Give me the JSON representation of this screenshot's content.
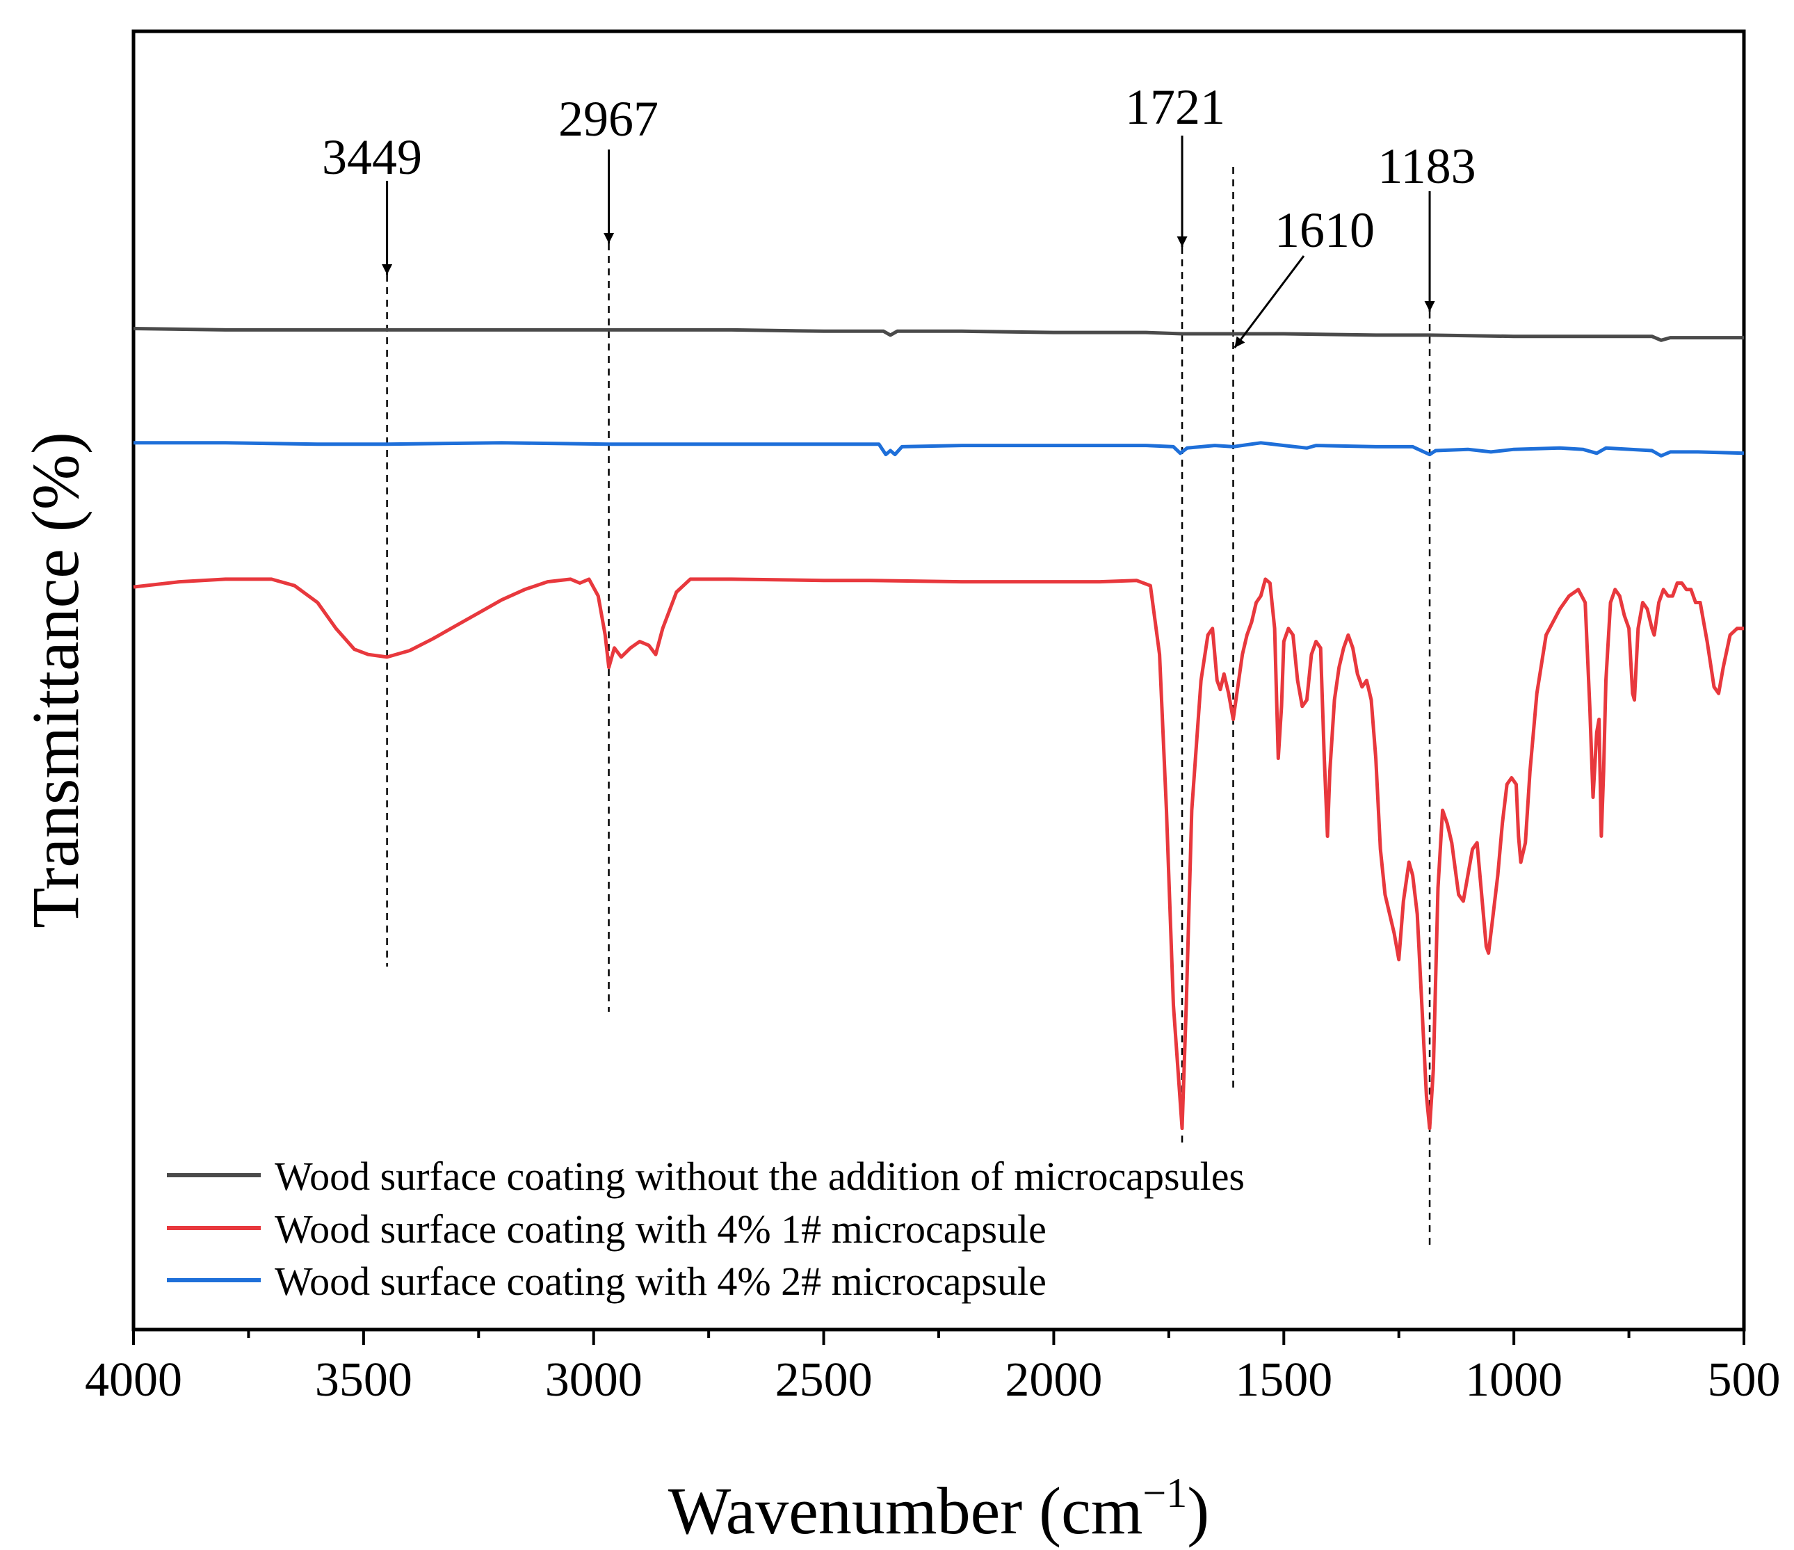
{
  "chart_data": {
    "type": "line",
    "title": "",
    "xlabel": "Wavenumber (cm",
    "xlabel_superscript": "−1",
    "xlabel_close": ")",
    "ylabel": "Transmittance (%)",
    "xlim": [
      4000,
      500
    ],
    "x_reversed": true,
    "ylim": [
      0,
      100
    ],
    "y_ticks_shown": false,
    "grid": false,
    "x_ticks": [
      4000,
      3500,
      3000,
      2500,
      2000,
      1500,
      1000,
      500
    ],
    "x_tick_labels": [
      "4000",
      "3500",
      "3000",
      "2500",
      "2000",
      "1500",
      "1000",
      "500"
    ],
    "legend_position": "bottom-left",
    "series": [
      {
        "name": "Wood surface coating without the addition of microcapsules",
        "color": "#4a4a4a",
        "points": [
          [
            4000,
            77.1
          ],
          [
            3800,
            77.0
          ],
          [
            3600,
            77.0
          ],
          [
            3449,
            77.0
          ],
          [
            3200,
            77.0
          ],
          [
            2967,
            77.0
          ],
          [
            2700,
            77.0
          ],
          [
            2500,
            76.9
          ],
          [
            2370,
            76.9
          ],
          [
            2355,
            76.6
          ],
          [
            2340,
            76.9
          ],
          [
            2200,
            76.9
          ],
          [
            2000,
            76.8
          ],
          [
            1800,
            76.8
          ],
          [
            1721,
            76.7
          ],
          [
            1610,
            76.7
          ],
          [
            1500,
            76.7
          ],
          [
            1300,
            76.6
          ],
          [
            1183,
            76.6
          ],
          [
            1000,
            76.5
          ],
          [
            800,
            76.5
          ],
          [
            700,
            76.5
          ],
          [
            680,
            76.2
          ],
          [
            660,
            76.4
          ],
          [
            500,
            76.4
          ]
        ]
      },
      {
        "name": "Wood surface coating with 4% 1# microcapsule",
        "color": "#e8383d",
        "points": [
          [
            4000,
            57.2
          ],
          [
            3900,
            57.6
          ],
          [
            3800,
            57.8
          ],
          [
            3700,
            57.8
          ],
          [
            3650,
            57.3
          ],
          [
            3600,
            56.0
          ],
          [
            3560,
            54.0
          ],
          [
            3520,
            52.4
          ],
          [
            3490,
            52.0
          ],
          [
            3449,
            51.8
          ],
          [
            3400,
            52.3
          ],
          [
            3350,
            53.2
          ],
          [
            3300,
            54.2
          ],
          [
            3250,
            55.2
          ],
          [
            3200,
            56.2
          ],
          [
            3150,
            57.0
          ],
          [
            3100,
            57.6
          ],
          [
            3050,
            57.8
          ],
          [
            3030,
            57.5
          ],
          [
            3010,
            57.8
          ],
          [
            2990,
            56.5
          ],
          [
            2975,
            53.5
          ],
          [
            2967,
            51.0
          ],
          [
            2955,
            52.5
          ],
          [
            2940,
            51.8
          ],
          [
            2920,
            52.5
          ],
          [
            2900,
            53.0
          ],
          [
            2880,
            52.7
          ],
          [
            2865,
            52.0
          ],
          [
            2850,
            54.0
          ],
          [
            2820,
            56.8
          ],
          [
            2790,
            57.8
          ],
          [
            2700,
            57.8
          ],
          [
            2500,
            57.7
          ],
          [
            2400,
            57.7
          ],
          [
            2200,
            57.6
          ],
          [
            2100,
            57.6
          ],
          [
            2000,
            57.6
          ],
          [
            1900,
            57.6
          ],
          [
            1820,
            57.7
          ],
          [
            1790,
            57.3
          ],
          [
            1770,
            52.0
          ],
          [
            1755,
            40.0
          ],
          [
            1740,
            25.0
          ],
          [
            1730,
            20.0
          ],
          [
            1721,
            15.5
          ],
          [
            1712,
            25.0
          ],
          [
            1700,
            40.0
          ],
          [
            1680,
            50.0
          ],
          [
            1665,
            53.5
          ],
          [
            1655,
            54.0
          ],
          [
            1645,
            50.0
          ],
          [
            1638,
            49.3
          ],
          [
            1630,
            50.5
          ],
          [
            1620,
            49.0
          ],
          [
            1610,
            47.0
          ],
          [
            1600,
            49.5
          ],
          [
            1590,
            52.0
          ],
          [
            1580,
            53.5
          ],
          [
            1570,
            54.5
          ],
          [
            1560,
            56.0
          ],
          [
            1550,
            56.5
          ],
          [
            1540,
            57.8
          ],
          [
            1530,
            57.5
          ],
          [
            1520,
            54.0
          ],
          [
            1512,
            44.0
          ],
          [
            1505,
            48.0
          ],
          [
            1500,
            53.0
          ],
          [
            1490,
            54.0
          ],
          [
            1480,
            53.5
          ],
          [
            1470,
            50.0
          ],
          [
            1460,
            48.0
          ],
          [
            1450,
            48.5
          ],
          [
            1440,
            52.0
          ],
          [
            1430,
            53.0
          ],
          [
            1420,
            52.5
          ],
          [
            1412,
            44.0
          ],
          [
            1405,
            38.0
          ],
          [
            1400,
            43.0
          ],
          [
            1390,
            48.5
          ],
          [
            1380,
            51.0
          ],
          [
            1370,
            52.5
          ],
          [
            1360,
            53.5
          ],
          [
            1350,
            52.5
          ],
          [
            1340,
            50.5
          ],
          [
            1330,
            49.5
          ],
          [
            1320,
            50.0
          ],
          [
            1310,
            48.5
          ],
          [
            1300,
            44.0
          ],
          [
            1290,
            37.0
          ],
          [
            1280,
            33.5
          ],
          [
            1270,
            32.0
          ],
          [
            1260,
            30.5
          ],
          [
            1250,
            28.5
          ],
          [
            1240,
            33.0
          ],
          [
            1228,
            36.0
          ],
          [
            1220,
            35.0
          ],
          [
            1210,
            32.0
          ],
          [
            1200,
            25.0
          ],
          [
            1190,
            18.0
          ],
          [
            1183,
            15.5
          ],
          [
            1175,
            20.0
          ],
          [
            1165,
            34.0
          ],
          [
            1155,
            40.0
          ],
          [
            1145,
            39.0
          ],
          [
            1135,
            37.5
          ],
          [
            1120,
            33.5
          ],
          [
            1110,
            33.0
          ],
          [
            1100,
            35.0
          ],
          [
            1090,
            37.0
          ],
          [
            1080,
            37.5
          ],
          [
            1070,
            33.5
          ],
          [
            1060,
            29.5
          ],
          [
            1055,
            29.0
          ],
          [
            1045,
            32.0
          ],
          [
            1035,
            35.0
          ],
          [
            1025,
            39.0
          ],
          [
            1015,
            42.0
          ],
          [
            1005,
            42.5
          ],
          [
            995,
            42.0
          ],
          [
            990,
            38.0
          ],
          [
            985,
            36.0
          ],
          [
            975,
            37.5
          ],
          [
            965,
            43.0
          ],
          [
            950,
            49.0
          ],
          [
            930,
            53.5
          ],
          [
            900,
            55.5
          ],
          [
            880,
            56.5
          ],
          [
            860,
            57.0
          ],
          [
            845,
            56.0
          ],
          [
            835,
            48.0
          ],
          [
            828,
            41.0
          ],
          [
            820,
            46.0
          ],
          [
            815,
            47.0
          ],
          [
            810,
            38.0
          ],
          [
            805,
            43.0
          ],
          [
            800,
            50.0
          ],
          [
            790,
            56.0
          ],
          [
            780,
            57.0
          ],
          [
            770,
            56.5
          ],
          [
            760,
            55.0
          ],
          [
            750,
            54.0
          ],
          [
            742,
            49.0
          ],
          [
            738,
            48.5
          ],
          [
            730,
            54.0
          ],
          [
            720,
            56.0
          ],
          [
            710,
            55.5
          ],
          [
            700,
            54.0
          ],
          [
            695,
            53.5
          ],
          [
            685,
            56.0
          ],
          [
            675,
            57.0
          ],
          [
            665,
            56.5
          ],
          [
            655,
            56.5
          ],
          [
            645,
            57.5
          ],
          [
            635,
            57.5
          ],
          [
            625,
            57.0
          ],
          [
            615,
            57.0
          ],
          [
            605,
            56.0
          ],
          [
            595,
            56.0
          ],
          [
            580,
            53.0
          ],
          [
            565,
            49.5
          ],
          [
            555,
            49.0
          ],
          [
            545,
            51.0
          ],
          [
            530,
            53.5
          ],
          [
            515,
            54.0
          ],
          [
            500,
            54.0
          ]
        ]
      },
      {
        "name": "Wood surface coating with 4% 2# microcapsule",
        "color": "#1e6fd9",
        "points": [
          [
            4000,
            68.3
          ],
          [
            3800,
            68.3
          ],
          [
            3600,
            68.2
          ],
          [
            3449,
            68.2
          ],
          [
            3200,
            68.3
          ],
          [
            2967,
            68.2
          ],
          [
            2700,
            68.2
          ],
          [
            2500,
            68.2
          ],
          [
            2380,
            68.2
          ],
          [
            2365,
            67.4
          ],
          [
            2355,
            67.7
          ],
          [
            2345,
            67.4
          ],
          [
            2330,
            68.0
          ],
          [
            2200,
            68.1
          ],
          [
            2000,
            68.1
          ],
          [
            1900,
            68.1
          ],
          [
            1800,
            68.1
          ],
          [
            1740,
            68.0
          ],
          [
            1725,
            67.5
          ],
          [
            1710,
            67.9
          ],
          [
            1650,
            68.1
          ],
          [
            1610,
            68.0
          ],
          [
            1550,
            68.3
          ],
          [
            1500,
            68.1
          ],
          [
            1450,
            67.9
          ],
          [
            1430,
            68.1
          ],
          [
            1300,
            68.0
          ],
          [
            1220,
            68.0
          ],
          [
            1183,
            67.4
          ],
          [
            1170,
            67.7
          ],
          [
            1100,
            67.8
          ],
          [
            1050,
            67.6
          ],
          [
            1000,
            67.8
          ],
          [
            900,
            67.9
          ],
          [
            850,
            67.8
          ],
          [
            820,
            67.5
          ],
          [
            800,
            67.9
          ],
          [
            700,
            67.7
          ],
          [
            680,
            67.3
          ],
          [
            660,
            67.6
          ],
          [
            600,
            67.6
          ],
          [
            500,
            67.5
          ]
        ]
      }
    ],
    "annotations": [
      {
        "label": "3449",
        "x": 3449
      },
      {
        "label": "2967",
        "x": 2967
      },
      {
        "label": "1721",
        "x": 1721
      },
      {
        "label": "1610",
        "x": 1610
      },
      {
        "label": "1183",
        "x": 1183
      }
    ]
  }
}
